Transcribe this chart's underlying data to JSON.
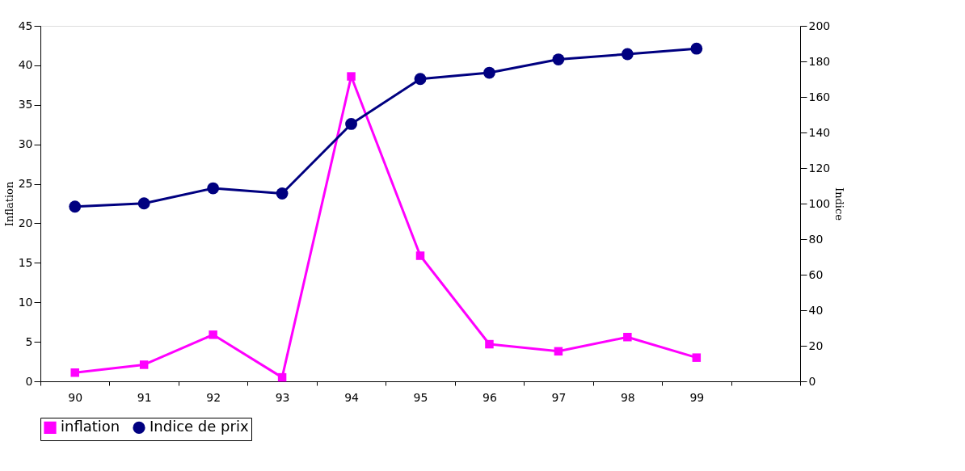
{
  "chart_data": {
    "type": "line",
    "categories": [
      "90",
      "91",
      "92",
      "93",
      "94",
      "95",
      "96",
      "97",
      "98",
      "99",
      null
    ],
    "ylabel": "Inflation",
    "y2label": "Indice",
    "ylim": [
      0,
      45
    ],
    "yticks": [
      0,
      5,
      10,
      15,
      20,
      25,
      30,
      35,
      40,
      45
    ],
    "y2lim": [
      0,
      200
    ],
    "y2ticks": [
      0,
      20,
      40,
      60,
      80,
      100,
      120,
      140,
      160,
      180,
      200
    ],
    "legend": "bottom",
    "grid": false,
    "series": [
      {
        "name": "inflation",
        "color": "#ff00ff",
        "marker": "square",
        "values": [
          1.1,
          2.1,
          5.9,
          0.5,
          38.6,
          15.9,
          4.7,
          3.8,
          5.6,
          3.0,
          null
        ]
      },
      {
        "name": "Indice de prix",
        "color": "#000080",
        "marker": "circle",
        "axis": "y2",
        "values": [
          98.3,
          100.1,
          108.6,
          105.7,
          144.8,
          170.1,
          173.6,
          181.1,
          184.1,
          187.2,
          null
        ]
      }
    ]
  }
}
